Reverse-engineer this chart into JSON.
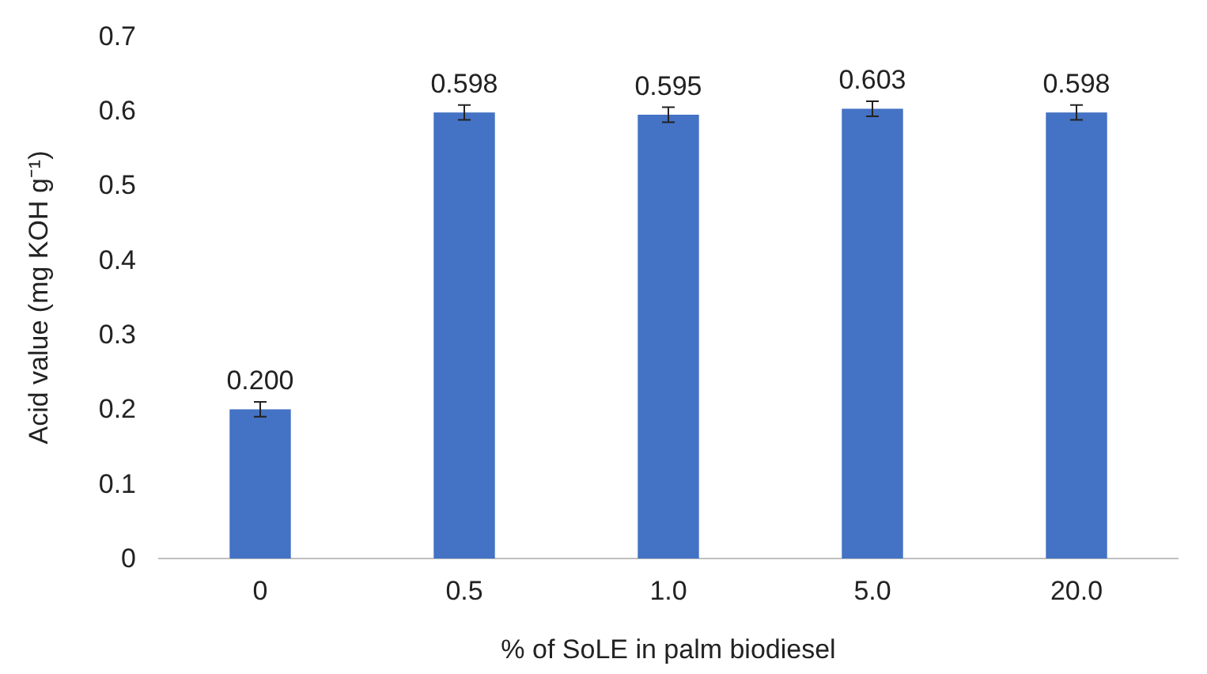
{
  "chart_data": {
    "type": "bar",
    "xlabel": "% of SoLE in palm biodiesel",
    "ylabel": "Acid value (mg KOH g⁻¹)",
    "categories": [
      "0",
      "0.5",
      "1.0",
      "5.0",
      "20.0"
    ],
    "values": [
      0.2,
      0.598,
      0.595,
      0.603,
      0.598
    ],
    "value_labels": [
      "0.200",
      "0.598",
      "0.595",
      "0.603",
      "0.598"
    ],
    "errors": [
      0.01,
      0.01,
      0.01,
      0.01,
      0.01
    ],
    "color": "#4472c4",
    "ylim": [
      0,
      0.7
    ],
    "yticks": [
      {
        "value": 0,
        "label": "0"
      },
      0.1,
      0.2,
      0.3,
      0.4,
      0.5,
      0.6,
      0.7
    ],
    "grid": false
  }
}
